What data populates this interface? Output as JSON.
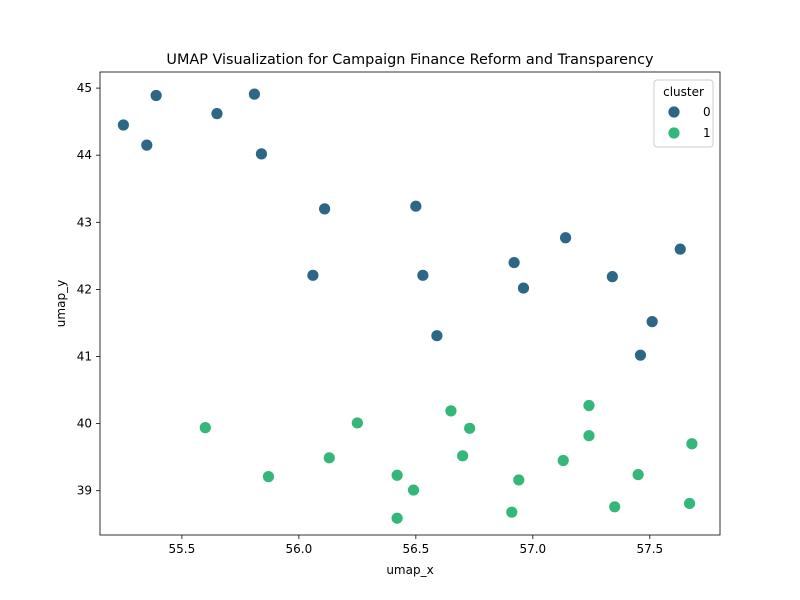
{
  "chart_data": {
    "type": "scatter",
    "title": "UMAP Visualization for Campaign Finance Reform and Transparency",
    "xlabel": "umap_x",
    "ylabel": "umap_y",
    "xlim": [
      55.15,
      57.8
    ],
    "ylim": [
      38.34,
      45.24
    ],
    "xticks": [
      55.5,
      56.0,
      56.5,
      57.0,
      57.5
    ],
    "xtick_labels": [
      "55.5",
      "56.0",
      "56.5",
      "57.0",
      "57.5"
    ],
    "yticks": [
      39,
      40,
      41,
      42,
      43,
      44,
      45
    ],
    "ytick_labels": [
      "39",
      "40",
      "41",
      "42",
      "43",
      "44",
      "45"
    ],
    "grid": false,
    "legend": {
      "title": "cluster",
      "placement": "top-right"
    },
    "series": [
      {
        "name": "0",
        "color": "#2d6787",
        "points": [
          [
            55.25,
            44.45
          ],
          [
            55.39,
            44.89
          ],
          [
            55.35,
            44.15
          ],
          [
            55.65,
            44.62
          ],
          [
            55.81,
            44.91
          ],
          [
            55.84,
            44.02
          ],
          [
            56.11,
            43.2
          ],
          [
            56.5,
            43.24
          ],
          [
            56.06,
            42.21
          ],
          [
            56.53,
            42.21
          ],
          [
            56.59,
            41.31
          ],
          [
            56.92,
            42.4
          ],
          [
            56.96,
            42.02
          ],
          [
            57.14,
            42.77
          ],
          [
            57.34,
            42.19
          ],
          [
            57.63,
            42.6
          ],
          [
            57.51,
            41.52
          ],
          [
            57.46,
            41.02
          ]
        ]
      },
      {
        "name": "1",
        "color": "#35b779",
        "points": [
          [
            55.6,
            39.94
          ],
          [
            55.87,
            39.21
          ],
          [
            56.13,
            39.49
          ],
          [
            56.25,
            40.01
          ],
          [
            56.42,
            39.23
          ],
          [
            56.42,
            38.59
          ],
          [
            56.49,
            39.01
          ],
          [
            56.65,
            40.19
          ],
          [
            56.7,
            39.52
          ],
          [
            56.73,
            39.93
          ],
          [
            56.91,
            38.68
          ],
          [
            56.94,
            39.16
          ],
          [
            57.13,
            39.45
          ],
          [
            57.24,
            40.27
          ],
          [
            57.24,
            39.82
          ],
          [
            57.35,
            38.76
          ],
          [
            57.45,
            39.24
          ],
          [
            57.67,
            38.81
          ],
          [
            57.68,
            39.7
          ]
        ]
      }
    ]
  }
}
